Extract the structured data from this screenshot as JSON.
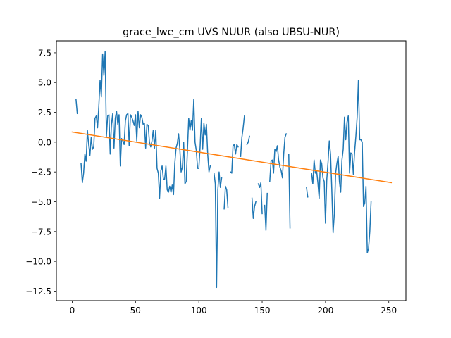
{
  "chart_data": {
    "type": "line",
    "title": "grace_lwe_cm UVS NUUR (also UBSU-NUR)",
    "xlabel": "",
    "ylabel": "",
    "xlim": [
      -12.5,
      263.5
    ],
    "ylim": [
      -13.3,
      8.5
    ],
    "x_ticks": [
      0,
      50,
      100,
      150,
      200,
      250
    ],
    "y_ticks": [
      7.5,
      5.0,
      2.5,
      0.0,
      -2.5,
      -5.0,
      -7.5,
      -10.0,
      -12.5
    ],
    "x_tick_labels": [
      "0",
      "50",
      "100",
      "150",
      "200",
      "250"
    ],
    "y_tick_labels": [
      "7.5",
      "5.0",
      "2.5",
      "0.0",
      "−2.5",
      "−5.0",
      "−7.5",
      "−10.0",
      "−12.5"
    ],
    "grid": false,
    "legend": "none",
    "colors": {
      "series": "#1f77b4",
      "trend": "#ff7f0e"
    },
    "series": [
      {
        "values": [
          [
            3,
            3.6
          ],
          [
            4,
            2.4
          ],
          [
            5,
            null
          ],
          [
            6,
            null
          ],
          [
            7,
            -1.8
          ],
          [
            8,
            -3.4
          ],
          [
            9,
            -2.6
          ],
          [
            10,
            -1.0
          ],
          [
            11,
            -1.6
          ],
          [
            12,
            1.0
          ],
          [
            13,
            -0.2
          ],
          [
            14,
            -1.1
          ],
          [
            15,
            0.4
          ],
          [
            16,
            -0.6
          ],
          [
            17,
            -0.4
          ],
          [
            18,
            2.0
          ],
          [
            19,
            2.2
          ],
          [
            20,
            1.2
          ],
          [
            21,
            3.0
          ],
          [
            22,
            5.2
          ],
          [
            23,
            3.8
          ],
          [
            24,
            7.4
          ],
          [
            25,
            5.6
          ],
          [
            26,
            7.6
          ],
          [
            27,
            0.5
          ],
          [
            28,
            2.2
          ],
          [
            29,
            2.3
          ],
          [
            30,
            -1.0
          ],
          [
            31,
            1.5
          ],
          [
            32,
            2.4
          ],
          [
            33,
            -0.5
          ],
          [
            34,
            2.0
          ],
          [
            35,
            2.6
          ],
          [
            36,
            1.5
          ],
          [
            37,
            2.3
          ],
          [
            38,
            -2.0
          ],
          [
            39,
            0.3
          ],
          [
            40,
            0.1
          ],
          [
            41,
            -0.2
          ],
          [
            42,
            1.8
          ],
          [
            43,
            2.3
          ],
          [
            44,
            2.4
          ],
          [
            45,
            -0.3
          ],
          [
            46,
            2.3
          ],
          [
            47,
            2.1
          ],
          [
            48,
            1.8
          ],
          [
            49,
            1.4
          ],
          [
            50,
            2.3
          ],
          [
            51,
            0.1
          ],
          [
            52,
            2.6
          ],
          [
            53,
            1.2
          ],
          [
            54,
            2.3
          ],
          [
            55,
            2.1
          ],
          [
            56,
            1.5
          ],
          [
            57,
            1.6
          ],
          [
            58,
            -0.5
          ],
          [
            59,
            1.5
          ],
          [
            60,
            1.4
          ],
          [
            61,
            0.0
          ],
          [
            62,
            -0.4
          ],
          [
            63,
            0.1
          ],
          [
            64,
            1.0
          ],
          [
            65,
            -0.5
          ],
          [
            66,
            1.0
          ],
          [
            67,
            -2.2
          ],
          [
            68,
            -2.6
          ],
          [
            69,
            -4.7
          ],
          [
            70,
            -2.4
          ],
          [
            71,
            -2.0
          ],
          [
            72,
            -3.1
          ],
          [
            73,
            -3.1
          ],
          [
            74,
            -2.0
          ],
          [
            75,
            -4.0
          ],
          [
            76,
            -4.2
          ],
          [
            77,
            -3.7
          ],
          [
            78,
            -4.2
          ],
          [
            79,
            -3.6
          ],
          [
            80,
            -4.4
          ],
          [
            81,
            -1.8
          ],
          [
            82,
            -0.5
          ],
          [
            83,
            -0.1
          ],
          [
            84,
            0.7
          ],
          [
            85,
            -0.6
          ],
          [
            86,
            -2.5
          ],
          [
            87,
            -2.1
          ],
          [
            88,
            0.0
          ],
          [
            89,
            -3.5
          ],
          [
            90,
            -3.3
          ],
          [
            91,
            -0.7
          ],
          [
            92,
            2.0
          ],
          [
            93,
            1.0
          ],
          [
            94,
            1.8
          ],
          [
            95,
            1.0
          ],
          [
            96,
            3.6
          ],
          [
            97,
            0.0
          ],
          [
            98,
            -0.7
          ],
          [
            99,
            -2.2
          ],
          [
            100,
            -2.2
          ],
          [
            101,
            -0.4
          ],
          [
            102,
            2.0
          ],
          [
            103,
            -0.6
          ],
          [
            104,
            1.6
          ],
          [
            105,
            0.6
          ],
          [
            106,
            1.5
          ],
          [
            107,
            -1.0
          ],
          [
            108,
            -2.5
          ],
          [
            109,
            -2.0
          ],
          [
            110,
            null
          ],
          [
            111,
            null
          ],
          [
            112,
            -2.6
          ],
          [
            113,
            -3.5
          ],
          [
            114,
            -12.2
          ],
          [
            115,
            -4.0
          ],
          [
            116,
            -2.5
          ],
          [
            117,
            -3.8
          ],
          [
            118,
            -3.0
          ],
          [
            119,
            null
          ],
          [
            120,
            -5.6
          ],
          [
            121,
            -3.7
          ],
          [
            122,
            -4.0
          ],
          [
            123,
            -5.5
          ],
          [
            124,
            null
          ],
          [
            125,
            -2.5
          ],
          [
            126,
            -2.6
          ],
          [
            127,
            -0.3
          ],
          [
            128,
            -0.2
          ],
          [
            129,
            -1.0
          ],
          [
            130,
            -0.2
          ],
          [
            131,
            -0.4
          ],
          [
            132,
            null
          ],
          [
            133,
            -1.2
          ],
          [
            134,
            0.4
          ],
          [
            135,
            1.2
          ],
          [
            136,
            2.2
          ],
          [
            137,
            null
          ],
          [
            138,
            -0.2
          ],
          [
            139,
            0.0
          ],
          [
            140,
            0.5
          ],
          [
            141,
            null
          ],
          [
            142,
            -4.7
          ],
          [
            143,
            -6.4
          ],
          [
            144,
            -5.4
          ],
          [
            145,
            -5.0
          ],
          [
            146,
            null
          ],
          [
            147,
            -3.5
          ],
          [
            148,
            -3.8
          ],
          [
            149,
            -3.4
          ],
          [
            150,
            -6.0
          ],
          [
            151,
            null
          ],
          [
            152,
            -5.3
          ],
          [
            153,
            -7.4
          ],
          [
            154,
            -4.3
          ],
          [
            155,
            null
          ],
          [
            156,
            -3.3
          ],
          [
            157,
            -1.6
          ],
          [
            158,
            -1.5
          ],
          [
            159,
            -2.6
          ],
          [
            160,
            -0.6
          ],
          [
            161,
            -0.8
          ],
          [
            162,
            -0.3
          ],
          [
            163,
            -1.5
          ],
          [
            164,
            -2.1
          ],
          [
            165,
            -2.4
          ],
          [
            166,
            -3.0
          ],
          [
            167,
            -1.0
          ],
          [
            168,
            0.4
          ],
          [
            169,
            0.7
          ],
          [
            170,
            null
          ],
          [
            171,
            -1.0
          ],
          [
            172,
            -7.2
          ],
          [
            173,
            null
          ],
          [
            174,
            null
          ],
          [
            175,
            null
          ],
          [
            176,
            null
          ],
          [
            177,
            null
          ],
          [
            178,
            null
          ],
          [
            179,
            null
          ],
          [
            180,
            null
          ],
          [
            181,
            null
          ],
          [
            182,
            null
          ],
          [
            183,
            null
          ],
          [
            184,
            null
          ],
          [
            185,
            -3.8
          ],
          [
            186,
            -4.6
          ],
          [
            187,
            null
          ],
          [
            188,
            null
          ],
          [
            189,
            -2.6
          ],
          [
            190,
            -3.5
          ],
          [
            191,
            -1.5
          ],
          [
            192,
            -2.6
          ],
          [
            193,
            -2.4
          ],
          [
            194,
            -3.4
          ],
          [
            195,
            -4.7
          ],
          [
            196,
            -1.5
          ],
          [
            197,
            -1.8
          ],
          [
            198,
            -3.0
          ],
          [
            199,
            -3.3
          ],
          [
            200,
            -6.8
          ],
          [
            201,
            -3.2
          ],
          [
            202,
            -1.7
          ],
          [
            203,
            0.1
          ],
          [
            204,
            -1.0
          ],
          [
            205,
            -4.0
          ],
          [
            206,
            -7.6
          ],
          [
            207,
            -6.0
          ],
          [
            208,
            -2.6
          ],
          [
            209,
            -1.8
          ],
          [
            210,
            -1.2
          ],
          [
            211,
            -3.3
          ],
          [
            212,
            -4.2
          ],
          [
            213,
            -1.5
          ],
          [
            214,
            -0.6
          ],
          [
            215,
            2.1
          ],
          [
            216,
            0.2
          ],
          [
            217,
            1.7
          ],
          [
            218,
            2.2
          ],
          [
            219,
            -2.6
          ],
          [
            220,
            -0.9
          ],
          [
            221,
            -1.0
          ],
          [
            222,
            -2.7
          ],
          [
            223,
            -0.8
          ],
          [
            224,
            0.5
          ],
          [
            225,
            2.1
          ],
          [
            226,
            5.2
          ],
          [
            227,
            0.2
          ],
          [
            228,
            0.2
          ],
          [
            229,
            0.0
          ],
          [
            230,
            -5.4
          ],
          [
            231,
            -5.1
          ],
          [
            232,
            -3.7
          ],
          [
            233,
            -9.3
          ],
          [
            234,
            -8.9
          ],
          [
            235,
            -7.5
          ],
          [
            236,
            -5.0
          ]
        ]
      },
      {
        "values": [
          [
            0,
            0.85
          ],
          [
            252,
            -3.4
          ]
        ]
      }
    ]
  }
}
